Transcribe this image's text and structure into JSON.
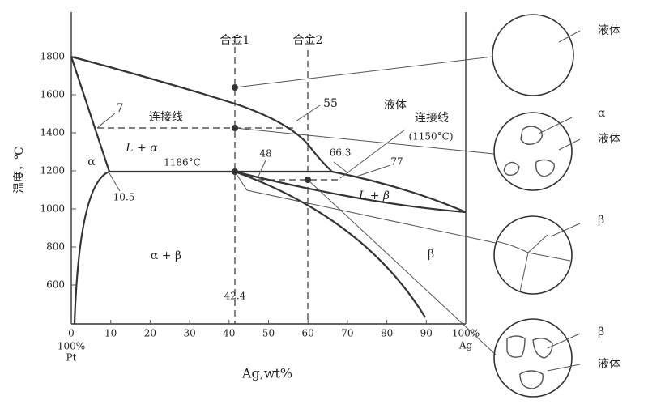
{
  "axes": {
    "x_ticks": [
      0,
      10,
      20,
      30,
      40,
      50,
      60,
      70,
      80,
      90,
      {
        "value": 100,
        "label": "100%"
      }
    ],
    "y_ticks": [
      600,
      800,
      1000,
      1200,
      1400,
      1600,
      1800
    ],
    "x_label": "Ag,wt%",
    "y_label": "温度，℃",
    "x_left_extra": [
      "100%",
      "Pt"
    ],
    "x_right_extra": "Ag"
  },
  "alloys": [
    "合金1",
    "合金2"
  ],
  "annotations": {
    "liquid": "液体",
    "tie_line_left": "连接线",
    "seven": "7",
    "fifty_five": "55",
    "tie_line_right": "连接线",
    "tie_temp": "(1150°C)",
    "sixty_six": "66.3",
    "seventy_seven": "77",
    "forty_eight": "48",
    "l_alpha": "L + α",
    "alpha": "α",
    "peritectic_temp": "1186°C",
    "ten_five": "10.5",
    "l_beta": "L + β",
    "alpha_beta": "α + β",
    "beta": "β",
    "forty_two": "42.4"
  },
  "micrographs": [
    {
      "labels": [
        "液体"
      ]
    },
    {
      "labels": [
        "α",
        "液体"
      ]
    },
    {
      "labels": [
        "β"
      ]
    },
    {
      "labels": [
        "β",
        "液体"
      ]
    }
  ]
}
